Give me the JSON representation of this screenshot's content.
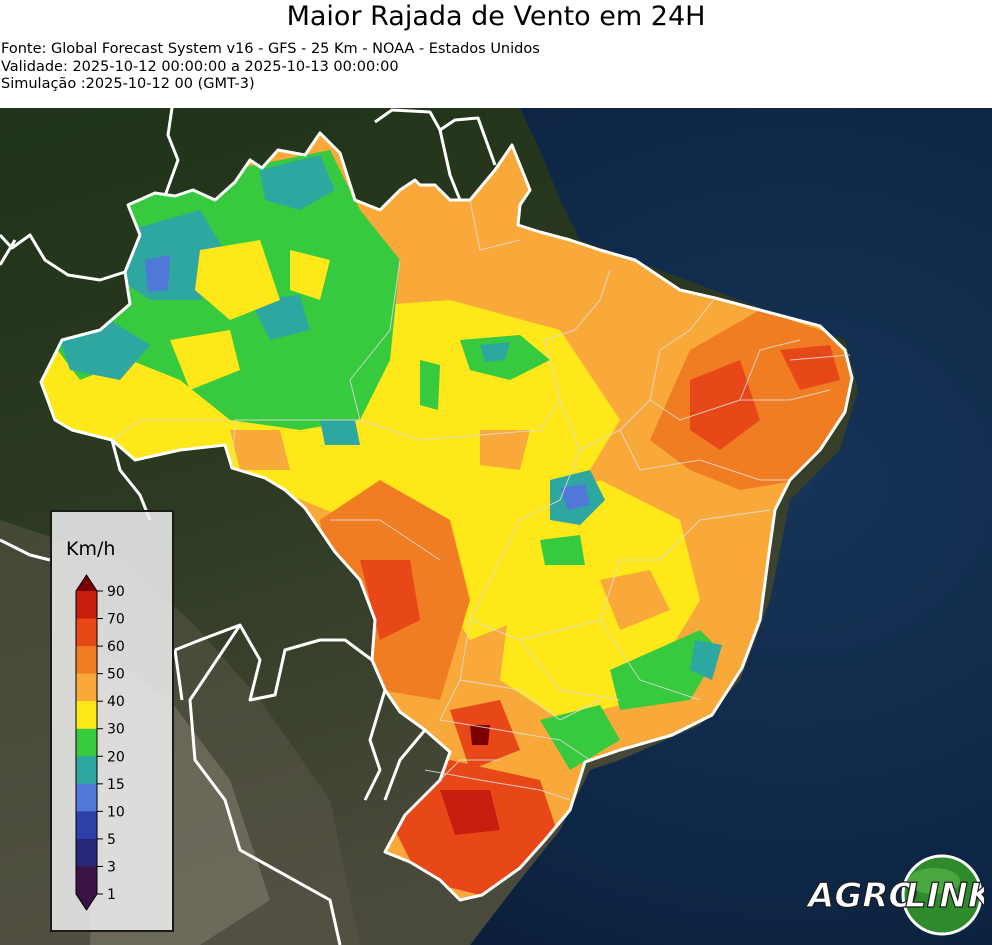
{
  "header": {
    "title": "Maior Rajada de Vento em 24H",
    "source": "Fonte: Global Forecast System v16 - GFS - 25 Km - NOAA - Estados Unidos",
    "validity": "Validade: 2025-10-12 00:00:00 a 2025-10-13 00:00:00",
    "simulation": "Simulação :2025-10-12 00 (GMT-3)"
  },
  "legend": {
    "unit": "Km/h",
    "ticks": [
      "90",
      "70",
      "60",
      "50",
      "40",
      "30",
      "20",
      "15",
      "10",
      "5",
      "3",
      "1"
    ],
    "colors": [
      "#7a0000",
      "#c81e10",
      "#e84818",
      "#f07d22",
      "#f8a93a",
      "#ffe81a",
      "#37c93e",
      "#2fa7a1",
      "#4f78d8",
      "#2f3fa8",
      "#292777",
      "#3a1245"
    ]
  },
  "logo": {
    "part1": "AGRO",
    "part2": "LINK"
  },
  "colors": {
    "ocean": "#0b1b33",
    "land": "#253520",
    "border": "#ffffff"
  }
}
